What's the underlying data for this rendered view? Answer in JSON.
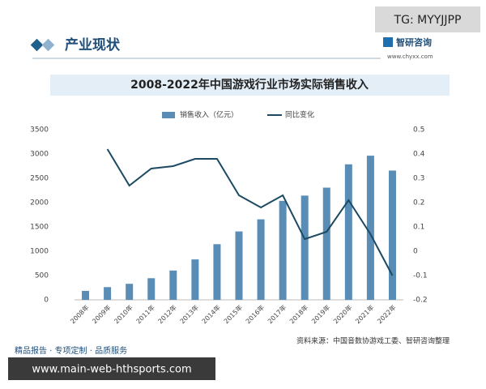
{
  "badge": "TG: MYYJJPP",
  "header": {
    "section": "产业现状",
    "brand": "智研咨询",
    "site": "www.chyxx.com"
  },
  "chart_data": {
    "type": "bar-line",
    "title": "2008-2022年中国游戏行业市场实际销售收入",
    "categories": [
      "2008年",
      "2009年",
      "2010年",
      "2011年",
      "2012年",
      "2013年",
      "2014年",
      "2015年",
      "2016年",
      "2017年",
      "2018年",
      "2019年",
      "2020年",
      "2021年",
      "2022年"
    ],
    "series": [
      {
        "name": "销售收入（亿元）",
        "type": "bar",
        "color": "#5a8db5",
        "values": [
          185,
          262,
          330,
          445,
          603,
          832,
          1145,
          1407,
          1656,
          2036,
          2144,
          2308,
          2787,
          2965,
          2659
        ]
      },
      {
        "name": "同比变化",
        "type": "line",
        "axis": "y2",
        "color": "#1d4a63",
        "values": [
          null,
          0.42,
          0.27,
          0.34,
          0.35,
          0.38,
          0.38,
          0.23,
          0.18,
          0.23,
          0.05,
          0.08,
          0.21,
          0.07,
          -0.1
        ]
      }
    ],
    "ylim": [
      0,
      3500
    ],
    "yticks": [
      0,
      500,
      1000,
      1500,
      2000,
      2500,
      3000,
      3500
    ],
    "y2lim": [
      -0.2,
      0.5
    ],
    "y2ticks": [
      -0.2,
      -0.1,
      0,
      0.1,
      0.2,
      0.3,
      0.4,
      0.5
    ],
    "legend": "top",
    "source": "资料来源：中国音数协游戏工委、智研咨询整理"
  },
  "footer": {
    "slogan": "精品报告 · 专项定制 · 品质服务",
    "url": "www.main-web-hthsports.com"
  }
}
